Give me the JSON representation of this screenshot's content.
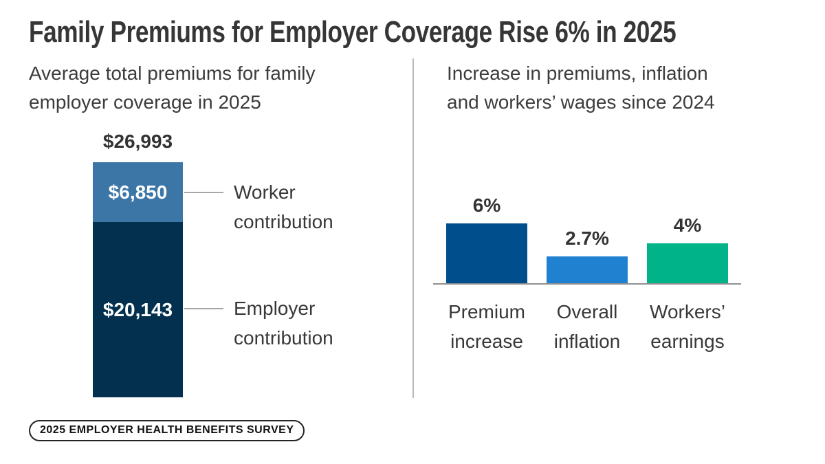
{
  "title": "Family Premiums for Employer Coverage Rise 6% in 2025",
  "left_panel": {
    "subtitle": "Average total premiums for family employer coverage in 2025",
    "subtitle_lines": [
      "Average total premiums for family",
      "employer coverage in 2025"
    ]
  },
  "right_panel": {
    "subtitle": "Increase in premiums, inflation and workers’ wages since 2024",
    "subtitle_lines": [
      "Increase in premiums, inflation",
      "and workers’ wages since 2024"
    ]
  },
  "footer": {
    "badge_label": "2025 EMPLOYER HEALTH BENEFITS SURVEY"
  },
  "colors": {
    "worker_blue": "#3c76a6",
    "employer_navy": "#03304f",
    "premium_blue": "#004e8b",
    "inflation_blue": "#2181d1",
    "earnings_green": "#00b389",
    "text_dark": "#363636",
    "line_gray": "#a6a6a6"
  },
  "chart_data": [
    {
      "type": "bar",
      "variant": "single-stacked-bar",
      "title": "Average total premiums for family employer coverage in 2025",
      "total": {
        "label": "$26,993",
        "value": 26993
      },
      "segments": [
        {
          "name": "Worker contribution",
          "label": "$6,850",
          "value": 6850,
          "color": "#3c76a6"
        },
        {
          "name": "Employer contribution",
          "label": "$20,143",
          "value": 20143,
          "color": "#03304f"
        }
      ],
      "legend_position": "right-callouts",
      "grid": false
    },
    {
      "type": "bar",
      "title": "Increase in premiums, inflation and workers’ wages since 2024",
      "categories": [
        "Premium increase",
        "Overall inflation",
        "Workers’ earnings"
      ],
      "values": [
        6,
        2.7,
        4
      ],
      "value_labels": [
        "6%",
        "2.7%",
        "4%"
      ],
      "colors": [
        "#004e8b",
        "#2181d1",
        "#00b389"
      ],
      "ylim": [
        0,
        6.6
      ],
      "grid": false,
      "legend_position": "none"
    }
  ]
}
